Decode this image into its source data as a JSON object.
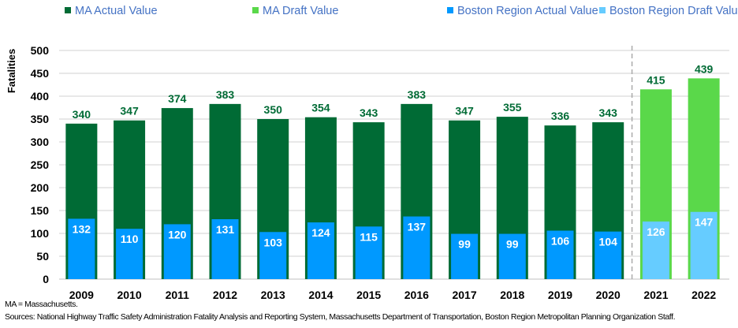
{
  "chart_data": {
    "type": "bar",
    "categories": [
      "2009",
      "2010",
      "2011",
      "2012",
      "2013",
      "2014",
      "2015",
      "2016",
      "2017",
      "2018",
      "2019",
      "2020",
      "2021",
      "2022"
    ],
    "series": [
      {
        "name": "MA Actual Value",
        "color": "#006B35",
        "values": [
          340,
          347,
          374,
          383,
          350,
          354,
          343,
          383,
          347,
          355,
          336,
          343,
          null,
          null
        ]
      },
      {
        "name": "MA Draft Value",
        "color": "#5AD84A",
        "values": [
          null,
          null,
          null,
          null,
          null,
          null,
          null,
          null,
          null,
          null,
          null,
          null,
          415,
          439
        ]
      },
      {
        "name": "Boston Region Actual Value",
        "color": "#0099FF",
        "values": [
          132,
          110,
          120,
          131,
          103,
          124,
          115,
          137,
          99,
          99,
          106,
          104,
          null,
          null
        ]
      },
      {
        "name": "Boston Region Draft Value",
        "color": "#66CCFF",
        "values": [
          null,
          null,
          null,
          null,
          null,
          null,
          null,
          null,
          null,
          null,
          null,
          null,
          126,
          147
        ]
      }
    ],
    "ylabel": "Fatalities",
    "xlabel": "",
    "ylim": [
      0,
      500
    ],
    "yticks": [
      0,
      50,
      100,
      150,
      200,
      250,
      300,
      350,
      400,
      450,
      500
    ],
    "grid": true,
    "legend": "top",
    "divider_between": [
      "2020",
      "2021"
    ]
  },
  "notes": {
    "abbrev": "MA = Massachusetts.",
    "sources": "Sources: National Highway Traffic Safety Administration Fatality Analysis and Reporting System, Massachusetts Department of Transportation, Boston Region Metropolitan Planning Organization Staff."
  },
  "colors": {
    "legend_text": "#4472C4",
    "ma_label": "#006B35",
    "boston_label": "#FFFFFF"
  }
}
